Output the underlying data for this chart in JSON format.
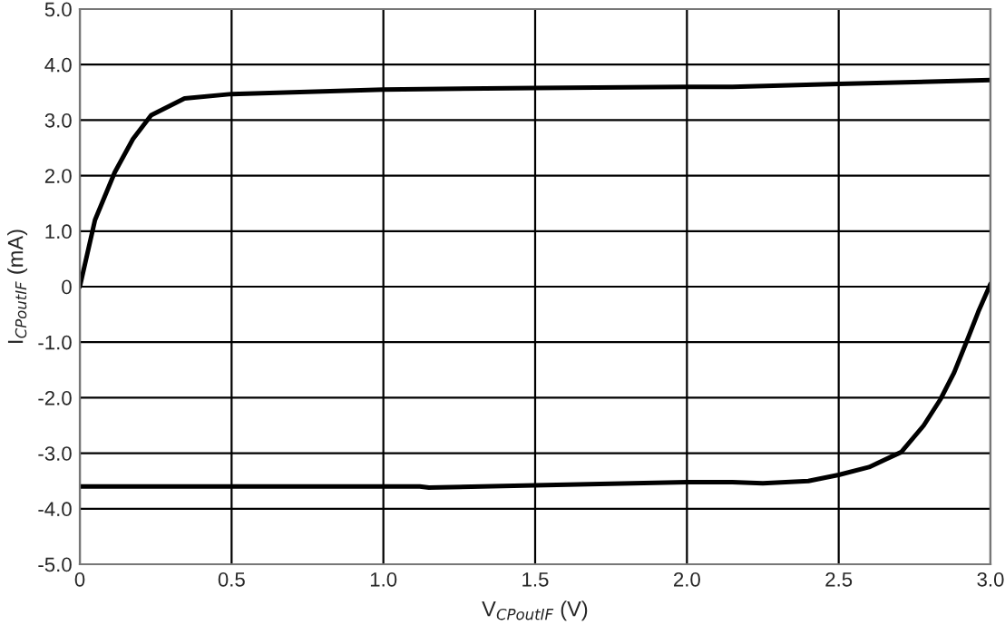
{
  "chart_data": {
    "type": "line",
    "xlabel": "V$_{CPoutIF}$ (V)",
    "ylabel": "I$_{CPoutIF}$ (mA)",
    "xlim": [
      0,
      3.0
    ],
    "xticks": [
      0,
      {
        "value": 0.5,
        "label": "0.5"
      },
      {
        "value": 1.0,
        "label": "1.0"
      },
      {
        "value": 1.5,
        "label": "1.5"
      },
      {
        "value": 2.0,
        "label": "2.0"
      },
      {
        "value": 2.5,
        "label": "2.5"
      },
      {
        "value": 3.0,
        "label": "3.0"
      }
    ],
    "ylim": [
      -5.0,
      5.0
    ],
    "yticks": [
      {
        "value": -5,
        "label": "-5.0"
      },
      {
        "value": -4,
        "label": "-4.0"
      },
      {
        "value": -3,
        "label": "-3.0"
      },
      {
        "value": -2,
        "label": "-2.0"
      },
      {
        "value": -1,
        "label": "-1.0"
      },
      0,
      {
        "value": 1,
        "label": "1.0"
      },
      {
        "value": 2,
        "label": "2.0"
      },
      {
        "value": 3,
        "label": "3.0"
      },
      {
        "value": 4,
        "label": "4.0"
      },
      {
        "value": 5,
        "label": "5.0"
      }
    ],
    "grid": true,
    "marker": "none",
    "line_style": "solid",
    "series": [
      {
        "color": "#000000",
        "x": [
          0,
          0.05,
          0.115,
          0.175,
          0.235,
          0.345,
          0.5,
          1.0,
          1.5,
          2.0,
          2.15,
          2.5,
          3.0
        ],
        "values": [
          0,
          1.2,
          2.06,
          2.66,
          3.09,
          3.39,
          3.47,
          3.55,
          3.58,
          3.6,
          3.6,
          3.65,
          3.72
        ]
      },
      {
        "color": "#000000",
        "x": [
          0,
          0.5,
          1.0,
          1.12,
          1.15,
          1.5,
          2.0,
          2.15,
          2.25,
          2.4,
          2.5,
          2.6,
          2.706,
          2.78,
          2.835,
          2.88,
          2.925,
          2.96,
          3.0
        ],
        "values": [
          -3.6,
          -3.6,
          -3.6,
          -3.6,
          -3.62,
          -3.58,
          -3.52,
          -3.52,
          -3.54,
          -3.5,
          -3.39,
          -3.25,
          -2.98,
          -2.5,
          -2.03,
          -1.55,
          -0.94,
          -0.45,
          0.05
        ]
      }
    ]
  }
}
